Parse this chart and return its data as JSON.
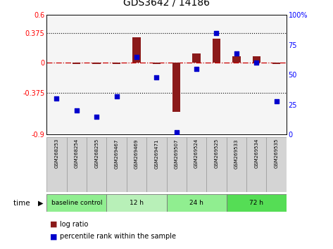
{
  "title": "GDS3642 / 14186",
  "samples": [
    "GSM268253",
    "GSM268254",
    "GSM268255",
    "GSM269467",
    "GSM269469",
    "GSM269471",
    "GSM269507",
    "GSM269524",
    "GSM269525",
    "GSM269533",
    "GSM269534",
    "GSM269535"
  ],
  "log_ratio": [
    0.0,
    -0.02,
    -0.02,
    -0.02,
    0.32,
    -0.02,
    -0.62,
    0.12,
    0.3,
    0.08,
    0.08,
    -0.02
  ],
  "percentile_rank": [
    30,
    20,
    15,
    32,
    65,
    48,
    2,
    55,
    85,
    68,
    60,
    28
  ],
  "group_labels": [
    "baseline control",
    "12 h",
    "24 h",
    "72 h"
  ],
  "group_boundaries": [
    0,
    3,
    6,
    9,
    12
  ],
  "group_colors": [
    "#90ee90",
    "#b8f0b8",
    "#90ee90",
    "#55dd55"
  ],
  "ylim_left": [
    -0.9,
    0.6
  ],
  "ylim_right": [
    0,
    100
  ],
  "yticks_left": [
    -0.9,
    -0.375,
    0,
    0.375,
    0.6
  ],
  "yticks_right": [
    0,
    25,
    50,
    75,
    100
  ],
  "ytick_labels_left": [
    "-0.9",
    "-0.375",
    "0",
    "0.375",
    "0.6"
  ],
  "ytick_labels_right": [
    "0",
    "25",
    "50",
    "75",
    "100%"
  ],
  "hlines": [
    0.375,
    -0.375
  ],
  "bar_color": "#8b1a1a",
  "dot_color": "#0000cc",
  "zero_line_color": "#cc0000",
  "bg_color": "#f5f5f5"
}
